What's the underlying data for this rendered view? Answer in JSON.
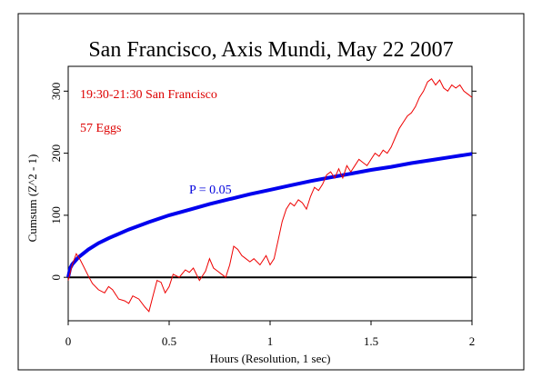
{
  "chart_data": {
    "type": "line",
    "title": "San Francisco, Axis Mundi, May 22 2007",
    "xlabel": "Hours (Resolution, 1 sec)",
    "ylabel": "Cumsum (Z^2 - 1)",
    "xlim": [
      0,
      2
    ],
    "ylim": [
      -70,
      340
    ],
    "x_ticks": [
      0,
      0.5,
      1,
      1.5,
      2
    ],
    "x_tick_labels": [
      "0",
      "0.5",
      "1",
      "1.5",
      "2"
    ],
    "y_ticks": [
      0,
      100,
      200,
      300
    ],
    "y_tick_labels": [
      "0",
      "100",
      "200",
      "300"
    ],
    "annotations": [
      {
        "text": "19:30-21:30 San Francisco",
        "color": "#dd0000"
      },
      {
        "text": "57 Eggs",
        "color": "#dd0000"
      },
      {
        "text": "P = 0.05",
        "color": "#0000dd"
      }
    ],
    "colors": {
      "cumsum": "#ee0000",
      "envelope": "#0000ee",
      "baseline": "#000000"
    },
    "series": [
      {
        "color": "#ee0000",
        "x": [
          0,
          0.02,
          0.04,
          0.06,
          0.08,
          0.1,
          0.12,
          0.15,
          0.18,
          0.2,
          0.22,
          0.25,
          0.28,
          0.3,
          0.32,
          0.35,
          0.38,
          0.4,
          0.42,
          0.44,
          0.46,
          0.48,
          0.5,
          0.52,
          0.55,
          0.58,
          0.6,
          0.62,
          0.65,
          0.68,
          0.7,
          0.72,
          0.74,
          0.76,
          0.78,
          0.8,
          0.82,
          0.84,
          0.86,
          0.88,
          0.9,
          0.92,
          0.95,
          0.98,
          1.0,
          1.02,
          1.04,
          1.06,
          1.08,
          1.1,
          1.12,
          1.14,
          1.16,
          1.18,
          1.2,
          1.22,
          1.24,
          1.26,
          1.28,
          1.3,
          1.32,
          1.34,
          1.36,
          1.38,
          1.4,
          1.42,
          1.44,
          1.46,
          1.48,
          1.5,
          1.52,
          1.54,
          1.56,
          1.58,
          1.6,
          1.62,
          1.64,
          1.66,
          1.68,
          1.7,
          1.72,
          1.74,
          1.76,
          1.78,
          1.8,
          1.82,
          1.84,
          1.86,
          1.88,
          1.9,
          1.92,
          1.94,
          1.96,
          1.98,
          2.0
        ],
        "values": [
          -5,
          20,
          38,
          28,
          15,
          2,
          -10,
          -20,
          -25,
          -15,
          -20,
          -35,
          -38,
          -42,
          -30,
          -35,
          -48,
          -55,
          -30,
          -5,
          -8,
          -25,
          -15,
          5,
          0,
          12,
          8,
          15,
          -5,
          10,
          30,
          15,
          10,
          5,
          0,
          20,
          50,
          45,
          35,
          30,
          25,
          30,
          20,
          35,
          20,
          30,
          60,
          90,
          110,
          120,
          115,
          125,
          120,
          110,
          130,
          145,
          140,
          150,
          165,
          170,
          160,
          175,
          160,
          180,
          170,
          180,
          190,
          185,
          180,
          190,
          200,
          195,
          205,
          200,
          210,
          225,
          240,
          250,
          260,
          265,
          275,
          290,
          300,
          315,
          320,
          310,
          318,
          305,
          300,
          310,
          305,
          310,
          300,
          295,
          290
        ]
      },
      {
        "name": "P = 0.05",
        "color": "#0000ee",
        "x": [
          0,
          0.01,
          0.02,
          0.05,
          0.1,
          0.15,
          0.2,
          0.3,
          0.4,
          0.5,
          0.6,
          0.7,
          0.8,
          0.9,
          1.0,
          1.1,
          1.2,
          1.3,
          1.4,
          1.5,
          1.6,
          1.7,
          1.8,
          1.9,
          2.0
        ],
        "values": [
          0,
          15,
          21,
          32,
          45,
          55,
          63,
          77,
          89,
          100,
          109,
          118,
          126,
          134,
          141,
          148,
          155,
          161,
          167,
          173,
          178,
          184,
          189,
          194,
          199
        ]
      }
    ]
  }
}
